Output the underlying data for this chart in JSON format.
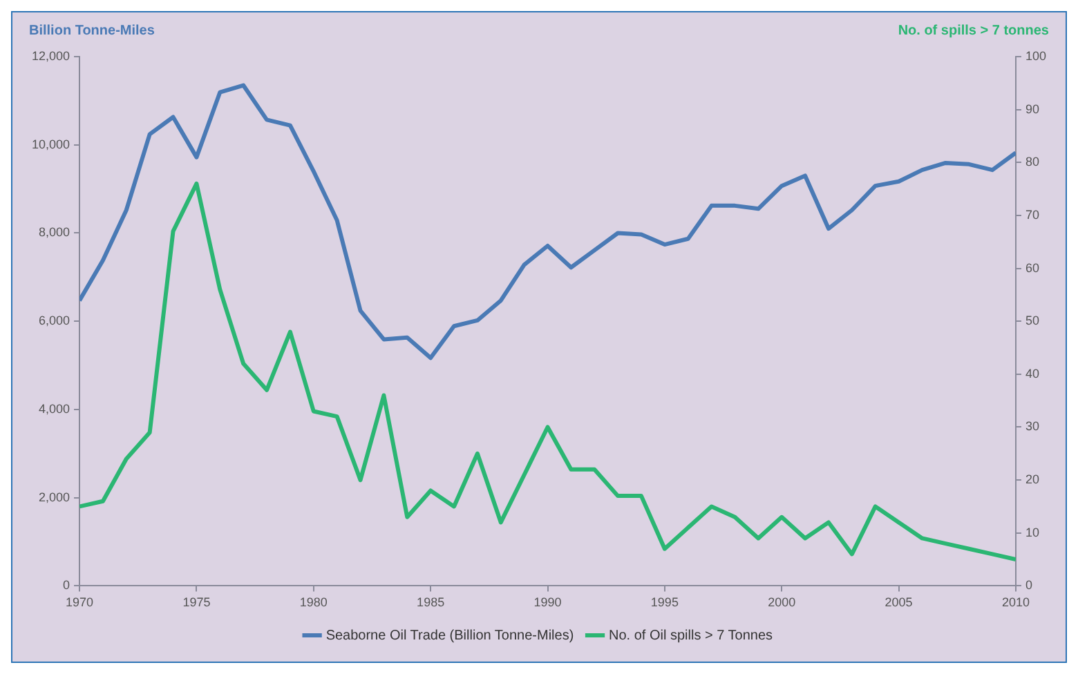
{
  "chart_data": {
    "type": "line",
    "ylabel": "Billion Tonne-Miles",
    "y2label": "No. of spills > 7 tonnes",
    "x": [
      1970,
      1971,
      1972,
      1973,
      1974,
      1975,
      1976,
      1977,
      1978,
      1979,
      1980,
      1981,
      1982,
      1983,
      1984,
      1985,
      1986,
      1987,
      1988,
      1989,
      1990,
      1991,
      1992,
      1993,
      1994,
      1995,
      1996,
      1997,
      1998,
      1999,
      2000,
      2001,
      2002,
      2003,
      2004,
      2005,
      2006,
      2007,
      2008,
      2009,
      2010
    ],
    "series": [
      {
        "name": "Seaborne Oil Trade (Billion Tonne-Miles)",
        "color": "#4a7ab5",
        "values": [
          6470,
          7380,
          8520,
          10240,
          10630,
          9720,
          11190,
          11350,
          10570,
          10440,
          9400,
          8290,
          6240,
          5590,
          5630,
          5170,
          5890,
          6020,
          6470,
          7280,
          7710,
          7220,
          7610,
          8000,
          7970,
          7740,
          7870,
          8620,
          8620,
          8550,
          9070,
          9300,
          8100,
          8520,
          9070,
          9170,
          9430,
          9590,
          9560,
          9430,
          9820
        ]
      },
      {
        "name": "No. of Oil spills > 7 Tonnes",
        "color": "#2bb673",
        "axis": "y2",
        "values": [
          15,
          16,
          24,
          29,
          67,
          76,
          56,
          42,
          37,
          48,
          33,
          32,
          20,
          36,
          13,
          18,
          15,
          25,
          12,
          21,
          30,
          22,
          22,
          17,
          17,
          7,
          11,
          15,
          13,
          9,
          13,
          9,
          12,
          6,
          15,
          12,
          9,
          8,
          7,
          6,
          5
        ]
      }
    ],
    "xlim": [
      1970,
      2010
    ],
    "xticks": [
      1970,
      1975,
      1980,
      1985,
      1990,
      1995,
      2000,
      2005,
      2010
    ],
    "ylim": [
      0,
      12000
    ],
    "yticks": [
      0,
      {
        "value": 2000,
        "label": "2,000"
      },
      {
        "value": 4000,
        "label": "4,000"
      },
      {
        "value": 6000,
        "label": "6,000"
      },
      {
        "value": 8000,
        "label": "8,000"
      },
      {
        "value": 10000,
        "label": "10,000"
      },
      {
        "value": 12000,
        "label": "12,000"
      }
    ],
    "y2lim": [
      0,
      100
    ],
    "y2ticks": [
      0,
      10,
      20,
      30,
      40,
      50,
      60,
      70,
      80,
      90,
      100
    ],
    "legend": "bottom",
    "marker": "none",
    "line_style": "solid"
  }
}
